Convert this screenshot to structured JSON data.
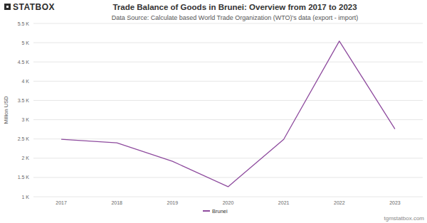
{
  "chart_data": {
    "type": "line",
    "title": "Trade Balance of Goods in Brunei: Overview from 2017 to 2023",
    "subtitle": "Data Source: Calculate based World Trade Organization (WTO)'s data (export - import)",
    "brand": "STATBOX",
    "watermark": "tgmstatbox.com",
    "y_label": "Million USD",
    "categories": [
      "2017",
      "2018",
      "2019",
      "2020",
      "2021",
      "2022",
      "2023"
    ],
    "series": [
      {
        "name": "Brunei",
        "color": "#8e4b9e",
        "values": [
          2490,
          2400,
          1920,
          1260,
          2490,
          5040,
          2760
        ]
      }
    ],
    "ylim": [
      1000,
      5500
    ],
    "yticks": [
      {
        "value": 1000,
        "label": "1 K"
      },
      {
        "value": 1500,
        "label": "1.5 K"
      },
      {
        "value": 2000,
        "label": "2 K"
      },
      {
        "value": 2500,
        "label": "2.5 K"
      },
      {
        "value": 3000,
        "label": "3 K"
      },
      {
        "value": 3500,
        "label": "3.5 K"
      },
      {
        "value": 4000,
        "label": "4 K"
      },
      {
        "value": 4500,
        "label": "4.5 K"
      },
      {
        "value": 5000,
        "label": "5 K"
      },
      {
        "value": 5500,
        "label": "5.5 K"
      }
    ],
    "grid": true,
    "legend": "bottom"
  }
}
